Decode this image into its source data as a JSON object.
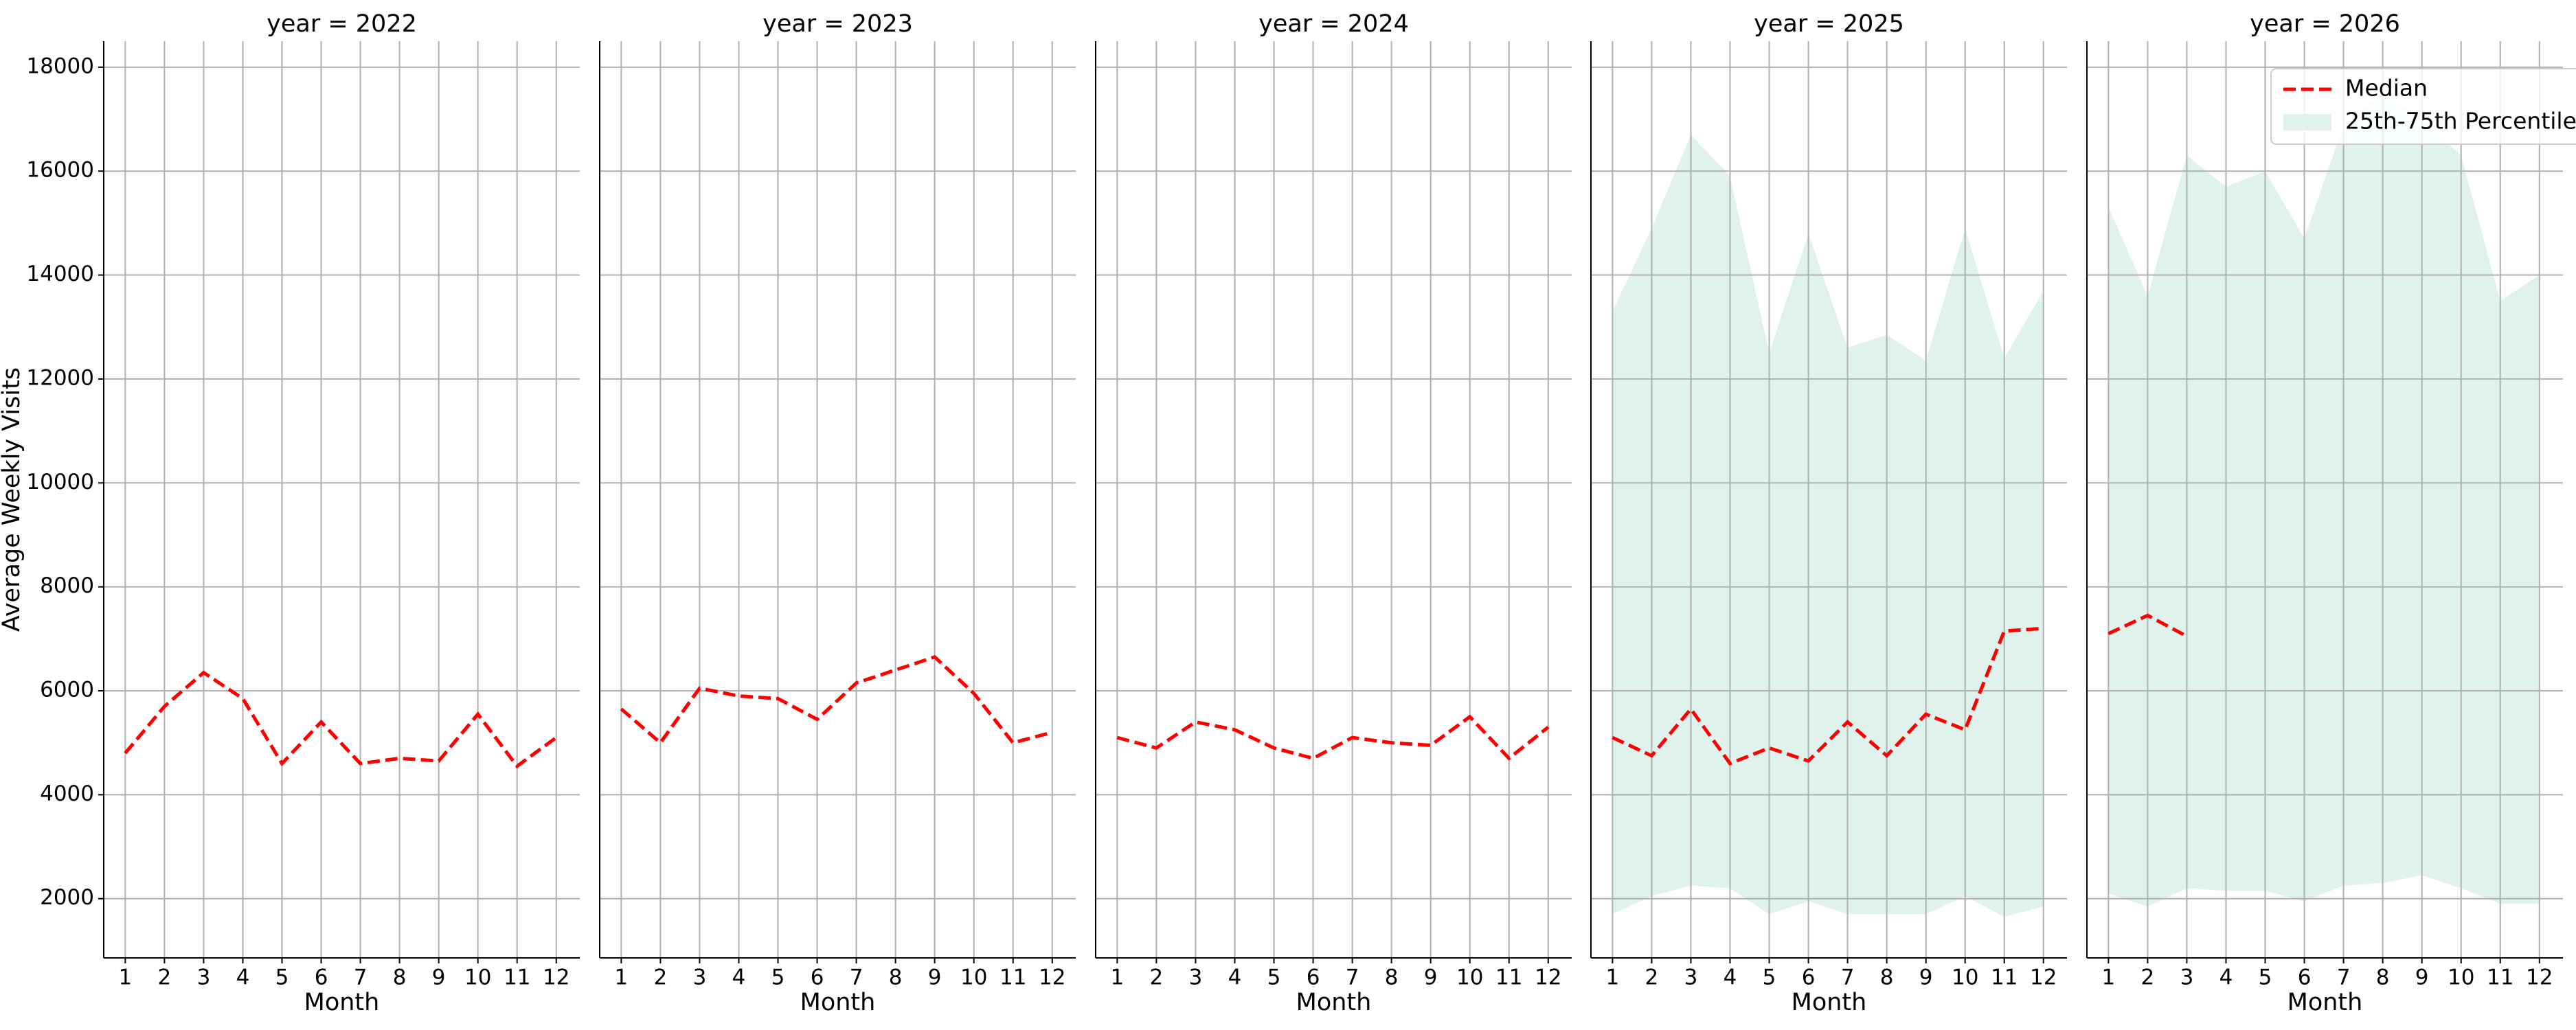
{
  "chart_data": [
    {
      "type": "line",
      "title": "year = 2022",
      "xlabel": "Month",
      "ylabel": "Average Weekly Visits",
      "x": [
        1,
        2,
        3,
        4,
        5,
        6,
        7,
        8,
        9,
        10,
        11,
        12
      ],
      "xlim": [
        0.45,
        12.6
      ],
      "xticks": [
        1,
        2,
        3,
        4,
        5,
        6,
        7,
        8,
        9,
        10,
        11,
        12
      ],
      "ylim": [
        860,
        18500
      ],
      "yticks": [
        2000,
        4000,
        6000,
        8000,
        10000,
        12000,
        14000,
        16000,
        18000
      ],
      "grid": true,
      "series": [
        {
          "color": "#ff0000",
          "values": [
            4800,
            5700,
            6350,
            5850,
            4600,
            5400,
            4600,
            4700,
            4650,
            5550,
            4550,
            5100
          ]
        }
      ]
    },
    {
      "type": "line",
      "title": "year = 2023",
      "xlabel": "Month",
      "x": [
        1,
        2,
        3,
        4,
        5,
        6,
        7,
        8,
        9,
        10,
        11,
        12
      ],
      "xlim": [
        0.45,
        12.6
      ],
      "xticks": [
        1,
        2,
        3,
        4,
        5,
        6,
        7,
        8,
        9,
        10,
        11,
        12
      ],
      "ylim": [
        860,
        18500
      ],
      "yticks": [
        2000,
        4000,
        6000,
        8000,
        10000,
        12000,
        14000,
        16000,
        18000
      ],
      "grid": true,
      "series": [
        {
          "color": "#ff0000",
          "values": [
            5650,
            5000,
            6050,
            5900,
            5850,
            5450,
            6150,
            6400,
            6650,
            5950,
            5000,
            5200
          ]
        }
      ]
    },
    {
      "type": "line",
      "title": "year = 2024",
      "xlabel": "Month",
      "x": [
        1,
        2,
        3,
        4,
        5,
        6,
        7,
        8,
        9,
        10,
        11,
        12
      ],
      "xlim": [
        0.45,
        12.6
      ],
      "xticks": [
        1,
        2,
        3,
        4,
        5,
        6,
        7,
        8,
        9,
        10,
        11,
        12
      ],
      "ylim": [
        860,
        18500
      ],
      "yticks": [
        2000,
        4000,
        6000,
        8000,
        10000,
        12000,
        14000,
        16000,
        18000
      ],
      "grid": true,
      "series": [
        {
          "color": "#ff0000",
          "values": [
            5100,
            4900,
            5400,
            5250,
            4900,
            4700,
            5100,
            5000,
            4950,
            5500,
            4700,
            5300
          ]
        }
      ]
    },
    {
      "type": "line",
      "title": "year = 2025",
      "xlabel": "Month",
      "x": [
        1,
        2,
        3,
        4,
        5,
        6,
        7,
        8,
        9,
        10,
        11,
        12
      ],
      "xlim": [
        0.45,
        12.6
      ],
      "xticks": [
        1,
        2,
        3,
        4,
        5,
        6,
        7,
        8,
        9,
        10,
        11,
        12
      ],
      "ylim": [
        860,
        18500
      ],
      "yticks": [
        2000,
        4000,
        6000,
        8000,
        10000,
        12000,
        14000,
        16000,
        18000
      ],
      "grid": true,
      "band": {
        "color": "#dff2ec",
        "lower": [
          1700,
          2050,
          2250,
          2200,
          1700,
          1950,
          1700,
          1700,
          1700,
          2050,
          1650,
          1850
        ],
        "upper": [
          13300,
          14900,
          16700,
          15900,
          12500,
          14800,
          12600,
          12850,
          12350,
          14900,
          12400,
          13700
        ]
      },
      "series": [
        {
          "color": "#ff0000",
          "values": [
            5100,
            4750,
            5650,
            4600,
            4900,
            4650,
            5400,
            4750,
            5550,
            5250,
            7150,
            7200
          ]
        }
      ]
    },
    {
      "type": "line",
      "title": "year = 2026",
      "xlabel": "Month",
      "x": [
        1,
        2,
        3,
        4,
        5,
        6,
        7,
        8,
        9,
        10,
        11,
        12
      ],
      "xlim": [
        0.45,
        12.6
      ],
      "xticks": [
        1,
        2,
        3,
        4,
        5,
        6,
        7,
        8,
        9,
        10,
        11,
        12
      ],
      "ylim": [
        860,
        18500
      ],
      "yticks": [
        2000,
        4000,
        6000,
        8000,
        10000,
        12000,
        14000,
        16000,
        18000
      ],
      "grid": true,
      "legend": "upper right",
      "band": {
        "name": "25th-75th Percentile",
        "color": "#dff2ec",
        "lower": [
          2100,
          1850,
          2200,
          2150,
          2150,
          1950,
          2250,
          2300,
          2450,
          2200,
          1900,
          1900
        ],
        "upper": [
          15300,
          13600,
          16300,
          15700,
          16000,
          14700,
          16900,
          17500,
          17000,
          16300,
          13500,
          14000
        ]
      },
      "series": [
        {
          "name": "Median",
          "color": "#ff0000",
          "values": [
            7100,
            7450,
            7050,
            null,
            null,
            null,
            null,
            null,
            null,
            null,
            null,
            null
          ]
        }
      ]
    }
  ]
}
